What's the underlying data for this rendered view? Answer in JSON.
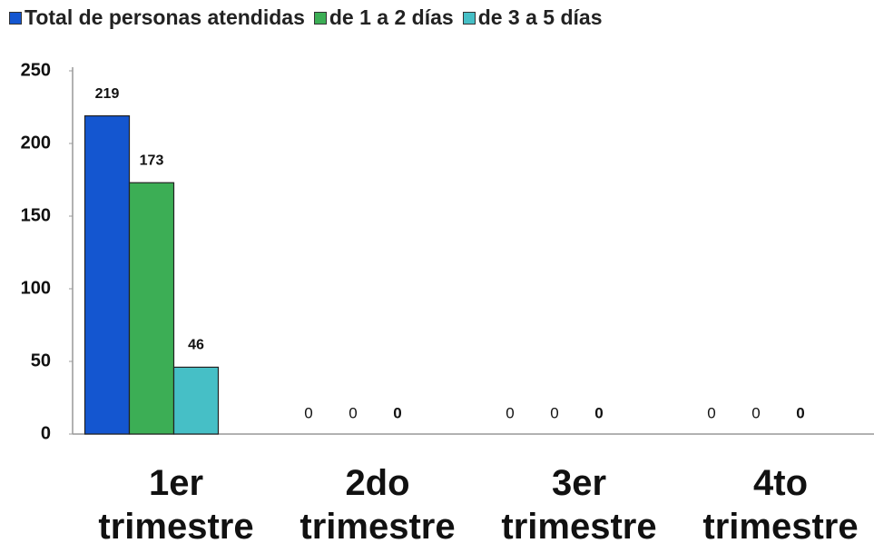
{
  "chart_data": {
    "type": "bar",
    "categories": [
      "1er trimestre",
      "2do trimestre",
      "3er trimestre",
      "4to trimestre"
    ],
    "series": [
      {
        "name": "Total de personas atendidas",
        "color": "#1456d0",
        "values": [
          219,
          0,
          0,
          0
        ]
      },
      {
        "name": "de 1 a 2 días",
        "color": "#3cae55",
        "values": [
          173,
          0,
          0,
          0
        ]
      },
      {
        "name": "de 3 a 5 días",
        "color": "#46bfc6",
        "values": [
          46,
          0,
          0,
          0
        ]
      }
    ],
    "ylim": [
      0,
      250
    ],
    "yticks": [
      0,
      50,
      100,
      150,
      200,
      250
    ],
    "grid": false,
    "legend": "top"
  }
}
